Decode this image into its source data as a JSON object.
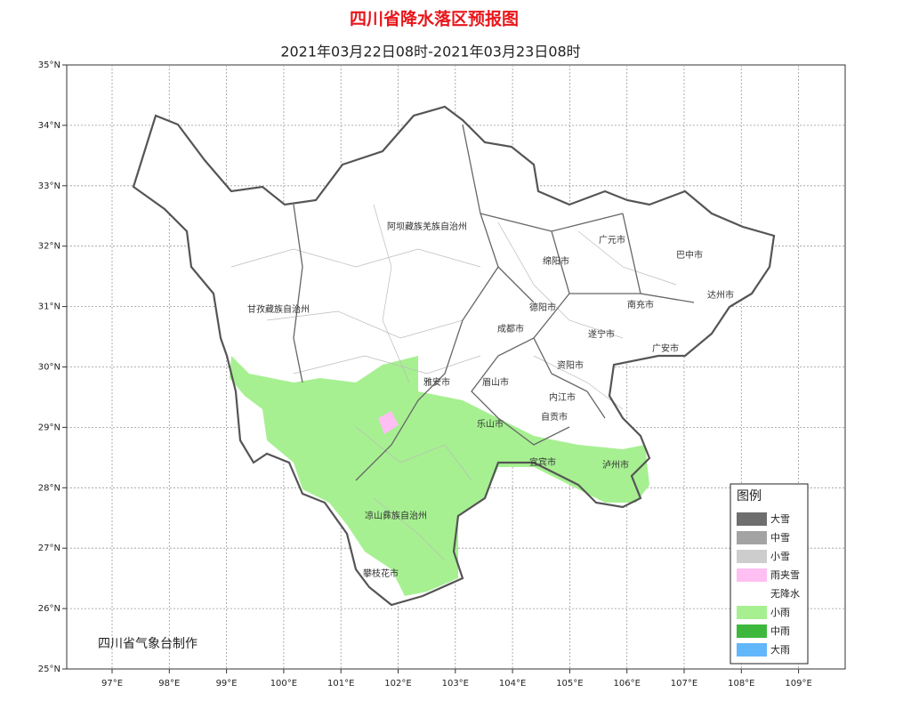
{
  "header": {
    "title": "四川省降水落区预报图",
    "subtitle": "2021年03月22日08时-2021年03月23日08时"
  },
  "axes": {
    "latitude": [
      "35°N",
      "34°N",
      "33°N",
      "32°N",
      "31°N",
      "30°N",
      "29°N",
      "28°N",
      "27°N",
      "26°N",
      "25°N"
    ],
    "longitude": [
      "97°E",
      "98°E",
      "99°E",
      "100°E",
      "101°E",
      "102°E",
      "103°E",
      "104°E",
      "105°E",
      "106°E",
      "107°E",
      "108°E",
      "109°E"
    ]
  },
  "map": {
    "labels": [
      "阿坝藏族羌族自治州",
      "甘孜藏族自治州",
      "广元市",
      "巴中市",
      "绵阳市",
      "达州市",
      "德阳市",
      "南充市",
      "成都市",
      "遂宁市",
      "广安市",
      "资阳市",
      "雅安市",
      "眉山市",
      "内江市",
      "自贡市",
      "乐山市",
      "宜宾市",
      "泸州市",
      "凉山彝族自治州",
      "攀枝花市"
    ]
  },
  "legend": {
    "title": "图例",
    "items": [
      {
        "label": "大雪",
        "color": "#6e6e6e"
      },
      {
        "label": "中雪",
        "color": "#a3a3a3"
      },
      {
        "label": "小雪",
        "color": "#cdcdcd"
      },
      {
        "label": "雨夹雪",
        "color": "#ffbff2"
      },
      {
        "label": "无降水",
        "color": "#ffffff"
      },
      {
        "label": "小雨",
        "color": "#a6f091"
      },
      {
        "label": "中雨",
        "color": "#3db83d"
      },
      {
        "label": "大雨",
        "color": "#62b6fa"
      }
    ]
  },
  "footer": {
    "credit": "四川省气象台制作"
  }
}
